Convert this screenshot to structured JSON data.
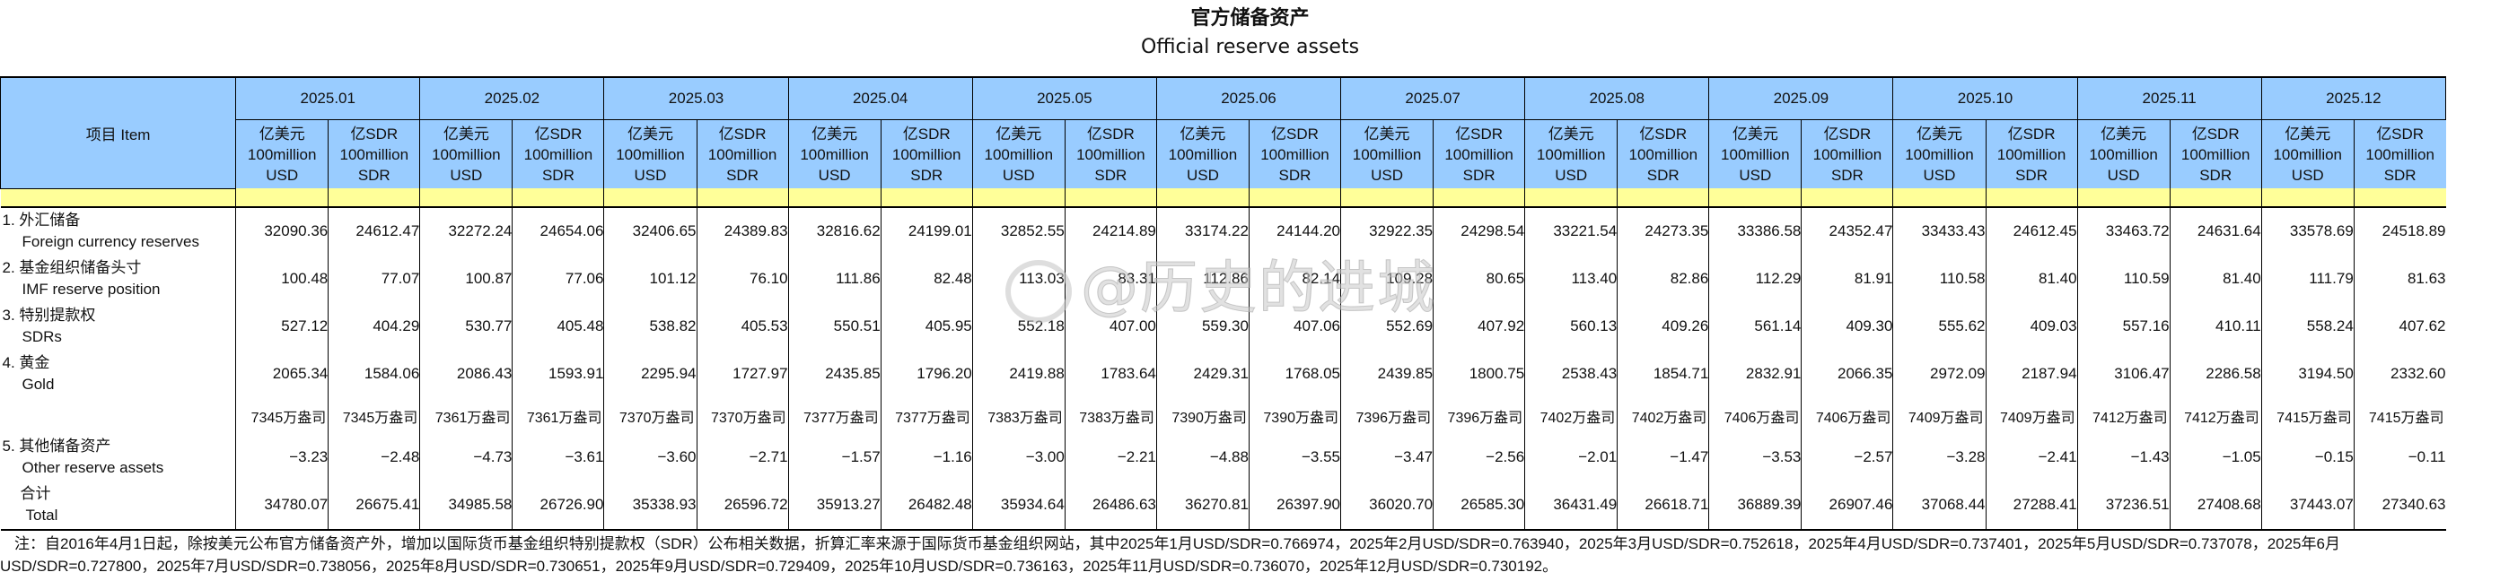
{
  "title": {
    "cn": "官方储备资产",
    "en": "Official reserve assets"
  },
  "header": {
    "item_label": "项目  Item",
    "months": [
      "2025.01",
      "2025.02",
      "2025.03",
      "2025.04",
      "2025.05",
      "2025.06",
      "2025.07",
      "2025.08",
      "2025.09",
      "2025.10",
      "2025.11",
      "2025.12"
    ],
    "unit_usd": {
      "cn": "亿美元",
      "en1": "100million",
      "en2": "USD"
    },
    "unit_sdr": {
      "cn": "亿SDR",
      "en1": "100million",
      "en2": "SDR"
    }
  },
  "rows": [
    {
      "cn": "1. 外汇储备",
      "en": "Foreign currency reserves",
      "values": [
        "32090.36",
        "24612.47",
        "32272.24",
        "24654.06",
        "32406.65",
        "24389.83",
        "32816.62",
        "24199.01",
        "32852.55",
        "24214.89",
        "33174.22",
        "24144.20",
        "32922.35",
        "24298.54",
        "33221.54",
        "24273.35",
        "33386.58",
        "24352.47",
        "33433.43",
        "24612.45",
        "33463.72",
        "24631.64",
        "33578.69",
        "24518.89"
      ]
    },
    {
      "cn": "2. 基金组织储备头寸",
      "en": "IMF reserve position",
      "values": [
        "100.48",
        "77.07",
        "100.87",
        "77.06",
        "101.12",
        "76.10",
        "111.86",
        "82.48",
        "113.03",
        "83.31",
        "112.86",
        "82.14",
        "109.28",
        "80.65",
        "113.40",
        "82.86",
        "112.29",
        "81.91",
        "110.58",
        "81.40",
        "110.59",
        "81.40",
        "111.79",
        "81.63"
      ]
    },
    {
      "cn": "3. 特别提款权",
      "en": "SDRs",
      "values": [
        "527.12",
        "404.29",
        "530.77",
        "405.48",
        "538.82",
        "405.53",
        "550.51",
        "405.95",
        "552.18",
        "407.00",
        "559.30",
        "407.06",
        "552.69",
        "407.92",
        "560.13",
        "409.26",
        "561.14",
        "409.30",
        "555.62",
        "409.03",
        "557.16",
        "410.11",
        "558.24",
        "407.62"
      ]
    },
    {
      "cn": "4. 黄金",
      "en": "Gold",
      "values": [
        "2065.34",
        "1584.06",
        "2086.43",
        "1593.91",
        "2295.94",
        "1727.97",
        "2435.85",
        "1796.20",
        "2419.88",
        "1783.64",
        "2429.31",
        "1768.05",
        "2439.85",
        "1800.75",
        "2538.43",
        "1854.71",
        "2832.91",
        "2066.35",
        "2972.09",
        "2187.94",
        "3106.47",
        "2286.58",
        "3194.50",
        "2332.60"
      ]
    },
    {
      "cn": "",
      "en": "",
      "values": [
        "7345万盎司",
        "7345万盎司",
        "7361万盎司",
        "7361万盎司",
        "7370万盎司",
        "7370万盎司",
        "7377万盎司",
        "7377万盎司",
        "7383万盎司",
        "7383万盎司",
        "7390万盎司",
        "7390万盎司",
        "7396万盎司",
        "7396万盎司",
        "7402万盎司",
        "7402万盎司",
        "7406万盎司",
        "7406万盎司",
        "7409万盎司",
        "7409万盎司",
        "7412万盎司",
        "7412万盎司",
        "7415万盎司",
        "7415万盎司"
      ]
    },
    {
      "cn": "5. 其他储备资产",
      "en": "Other reserve assets",
      "values": [
        "−3.23",
        "−2.48",
        "−4.73",
        "−3.61",
        "−3.60",
        "−2.71",
        "−1.57",
        "−1.16",
        "−3.00",
        "−2.21",
        "−4.88",
        "−3.55",
        "−3.47",
        "−2.56",
        "−2.01",
        "−1.47",
        "−3.53",
        "−2.57",
        "−3.28",
        "−2.41",
        "−1.43",
        "−1.05",
        "−0.15",
        "−0.11"
      ]
    },
    {
      "cn": "合计",
      "en": "Total",
      "values": [
        "34780.07",
        "26675.41",
        "34985.58",
        "26726.90",
        "35338.93",
        "26596.72",
        "35913.27",
        "26482.48",
        "35934.64",
        "26486.63",
        "36270.81",
        "26397.90",
        "36020.70",
        "26585.30",
        "36431.49",
        "26618.71",
        "36889.39",
        "26907.46",
        "37068.44",
        "27288.41",
        "37236.51",
        "27408.68",
        "37443.07",
        "27340.63"
      ]
    }
  ],
  "footnote": {
    "line1": "注：自2016年4月1日起，除按美元公布官方储备资产外，增加以国际货币基金组织特别提款权（SDR）公布相关数据，折算汇率来源于国际货币基金组织网站，其中2025年1月USD/SDR=0.766974，2025年2月USD/SDR=0.763940，2025年3月USD/SDR=0.752618，2025年4月USD/SDR=0.737401，2025年5月USD/SDR=0.737078，2025年6月",
    "line2": "USD/SDR=0.727800，2025年7月USD/SDR=0.738056，2025年8月USD/SDR=0.730651，2025年9月USD/SDR=0.729409，2025年10月USD/SDR=0.736163，2025年11月USD/SDR=0.736070，2025年12月USD/SDR=0.730192。"
  },
  "watermark": "@历史的进城",
  "colors": {
    "header_blue": "#99ccff",
    "band_yellow": "#ffff99",
    "border": "#000000"
  }
}
